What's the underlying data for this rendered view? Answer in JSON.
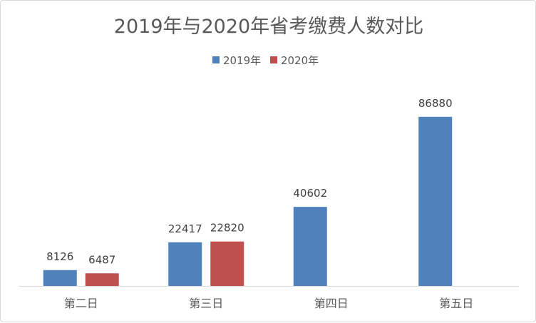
{
  "chart_data": {
    "type": "bar",
    "title": "2019年与2020年省考缴费人数对比",
    "categories": [
      "第二日",
      "第三日",
      "第四日",
      "第五日"
    ],
    "series": [
      {
        "name": "2019年",
        "color": "#4F81BD",
        "values": [
          8126,
          22417,
          40602,
          86880
        ]
      },
      {
        "name": "2020年",
        "color": "#C0504D",
        "values": [
          6487,
          22820,
          null,
          null
        ]
      }
    ],
    "ylim": [
      0,
      100000
    ],
    "grid": false,
    "y_axis_visible": false,
    "legend": "top",
    "data_labels": true
  }
}
